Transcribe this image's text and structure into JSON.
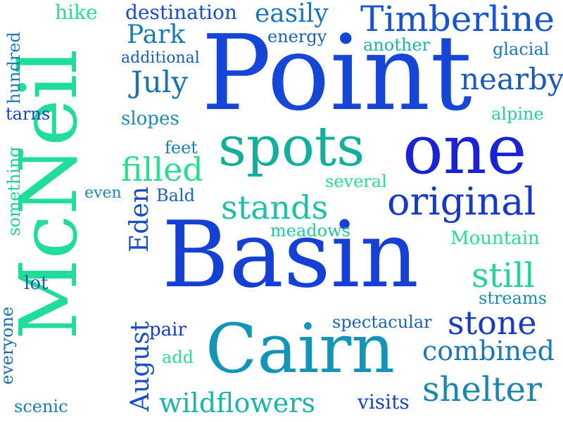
{
  "words": [
    {
      "text": "Point",
      "color": "#1546d8"
    },
    {
      "text": "Basin",
      "color": "#1440d6"
    },
    {
      "text": "McNeil",
      "color": "#22dc99"
    },
    {
      "text": "one",
      "color": "#1a22d6"
    },
    {
      "text": "spots",
      "color": "#12b09c"
    },
    {
      "text": "Cairn",
      "color": "#1494b6"
    },
    {
      "text": "original",
      "color": "#1638cc"
    },
    {
      "text": "Timberline",
      "color": "#1754cf"
    },
    {
      "text": "stands",
      "color": "#1fc0a8"
    },
    {
      "text": "shelter",
      "color": "#1c85b2"
    },
    {
      "text": "stone",
      "color": "#1838c8"
    },
    {
      "text": "combined",
      "color": "#1a78b8"
    },
    {
      "text": "still",
      "color": "#27d497"
    },
    {
      "text": "filled",
      "color": "#2adc8e"
    },
    {
      "text": "wildflowers",
      "color": "#1ab4a8"
    },
    {
      "text": "nearby",
      "color": "#1a5ab8"
    },
    {
      "text": "Park",
      "color": "#1a7ab8"
    },
    {
      "text": "July",
      "color": "#1a72b2"
    },
    {
      "text": "easily",
      "color": "#1a76b8"
    },
    {
      "text": "destination",
      "color": "#1a4cc4"
    },
    {
      "text": "Eden",
      "color": "#1a4cc8"
    },
    {
      "text": "August",
      "color": "#1a50c4"
    },
    {
      "text": "hike",
      "color": "#2adc8e"
    },
    {
      "text": "energy",
      "color": "#1a62b4"
    },
    {
      "text": "another",
      "color": "#1ab4a8"
    },
    {
      "text": "glacial",
      "color": "#1a76b8"
    },
    {
      "text": "additional",
      "color": "#1a5cbc"
    },
    {
      "text": "hundred",
      "color": "#1a7cb4"
    },
    {
      "text": "tarns",
      "color": "#1a40c4"
    },
    {
      "text": "slopes",
      "color": "#1a8cb0"
    },
    {
      "text": "alpine",
      "color": "#2acc9c"
    },
    {
      "text": "something",
      "color": "#22cc9a"
    },
    {
      "text": "feet",
      "color": "#1a7cb4"
    },
    {
      "text": "even",
      "color": "#1a8aa8"
    },
    {
      "text": "Bald",
      "color": "#1a64b8"
    },
    {
      "text": "several",
      "color": "#2adc8e"
    },
    {
      "text": "meadows",
      "color": "#22c8a0"
    },
    {
      "text": "Mountain",
      "color": "#2adc8e"
    },
    {
      "text": "lot",
      "color": "#1a5cb8"
    },
    {
      "text": "streams",
      "color": "#1a8cb0"
    },
    {
      "text": "everyone",
      "color": "#1a6cb6"
    },
    {
      "text": "pair",
      "color": "#1a38c8"
    },
    {
      "text": "spectacular",
      "color": "#1a64b8"
    },
    {
      "text": "add",
      "color": "#2adc8e"
    },
    {
      "text": "scenic",
      "color": "#1a7cb4"
    },
    {
      "text": "visits",
      "color": "#1a44c0"
    }
  ]
}
